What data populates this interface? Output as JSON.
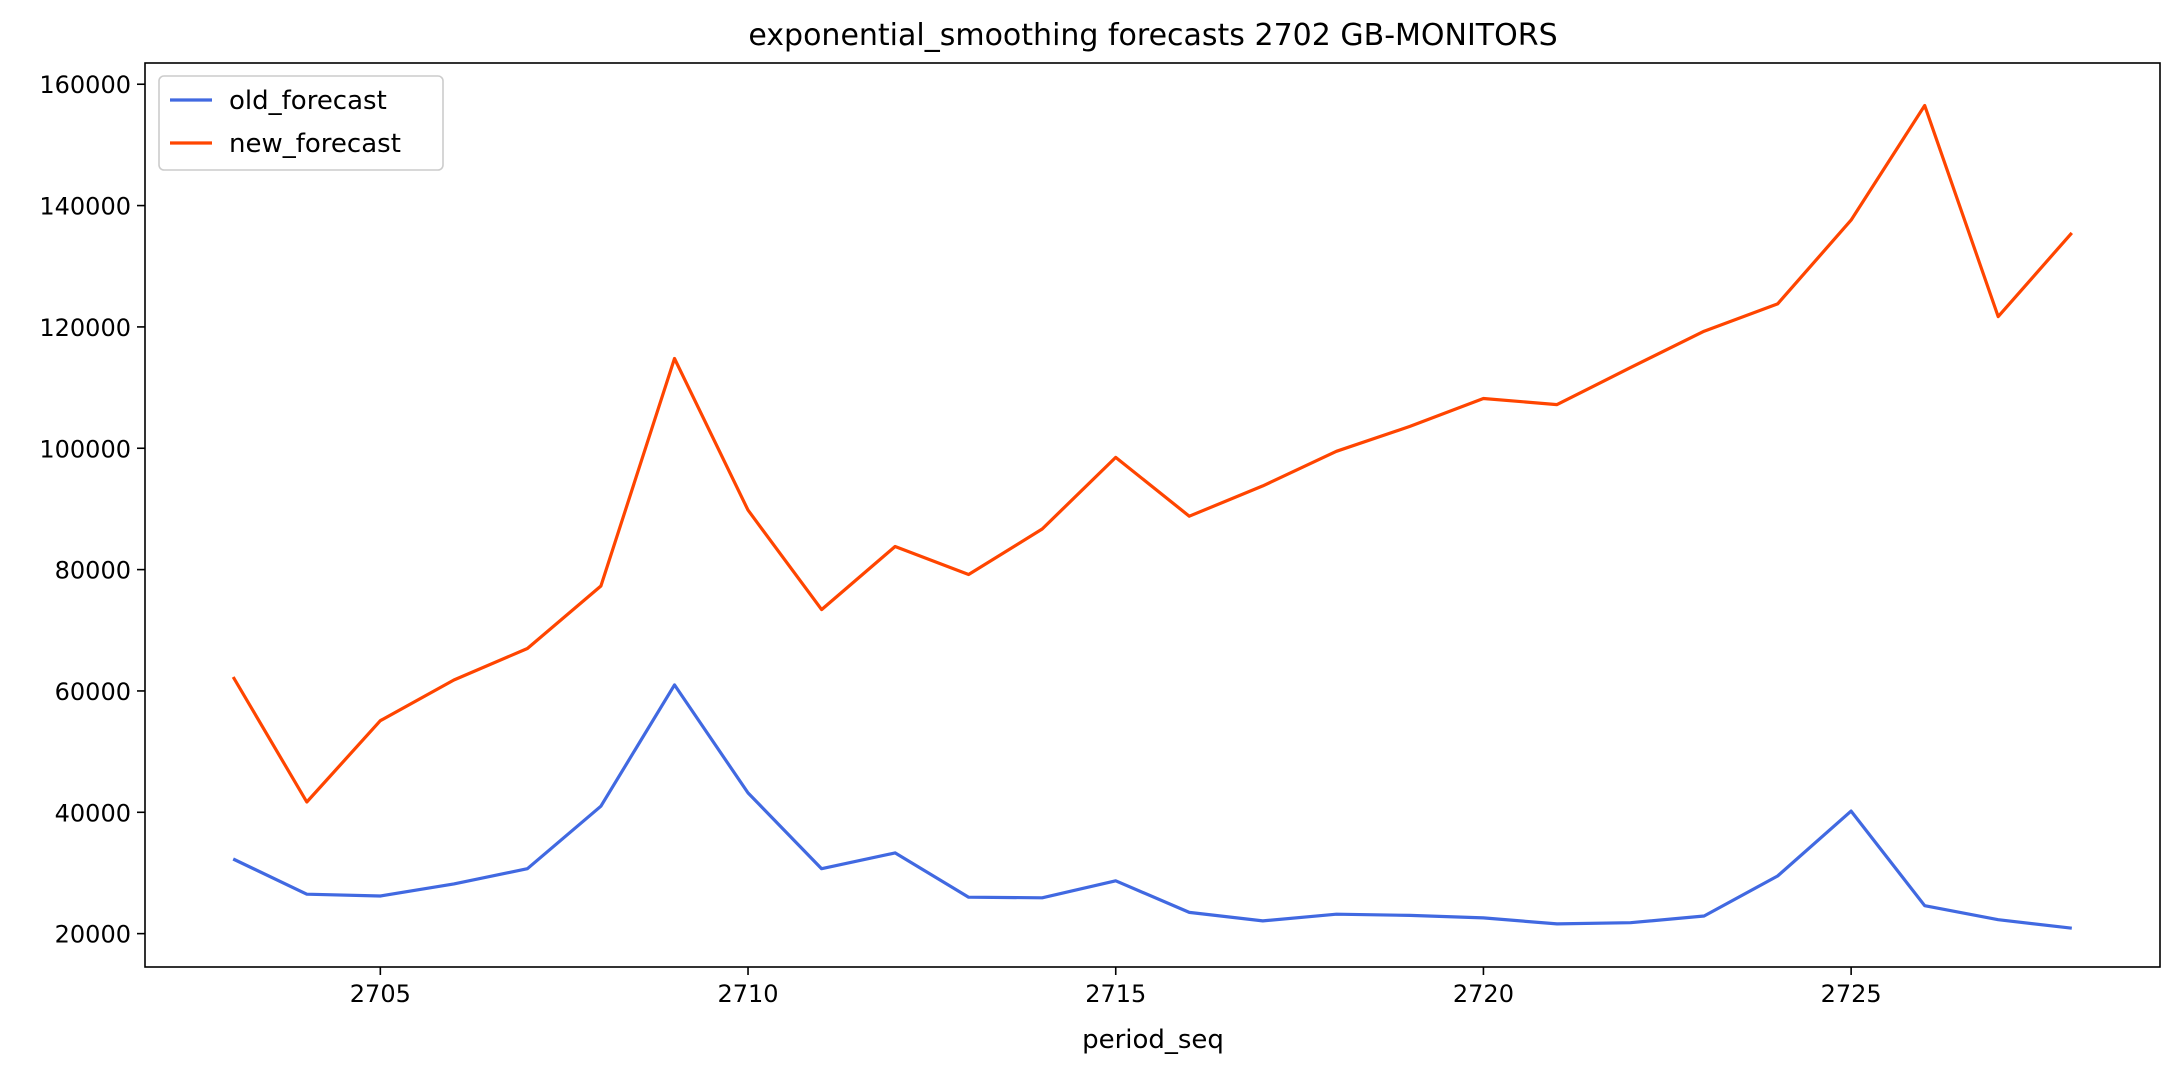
{
  "chart_data": {
    "type": "line",
    "title": "exponential_smoothing forecasts 2702 GB-MONITORS",
    "xlabel": "period_seq",
    "ylabel": "",
    "x": [
      2703,
      2704,
      2705,
      2706,
      2707,
      2708,
      2709,
      2710,
      2711,
      2712,
      2713,
      2714,
      2715,
      2716,
      2717,
      2718,
      2719,
      2720,
      2721,
      2722,
      2723,
      2724,
      2725,
      2726,
      2727,
      2728
    ],
    "xlim": [
      2701.8,
      2729.2
    ],
    "ylim": [
      14500,
      163500
    ],
    "xticks": [
      2705,
      2710,
      2715,
      2720,
      2725
    ],
    "yticks": [
      20000,
      40000,
      60000,
      80000,
      100000,
      120000,
      140000,
      160000
    ],
    "grid": false,
    "legend_position": "top-left",
    "series": [
      {
        "name": "old_forecast",
        "color": "#4169E1",
        "values": [
          32300,
          26500,
          26200,
          28200,
          30700,
          41000,
          61000,
          43200,
          30700,
          33300,
          26000,
          25900,
          28700,
          23500,
          22100,
          23200,
          23000,
          22600,
          21600,
          21800,
          22900,
          29500,
          40200,
          24600,
          22300,
          20900
        ]
      },
      {
        "name": "new_forecast",
        "color": "#FF4500",
        "values": [
          62300,
          41700,
          55100,
          61800,
          67000,
          77300,
          114800,
          89800,
          73400,
          83800,
          79200,
          86700,
          98500,
          88800,
          93800,
          99500,
          103600,
          108200,
          107200,
          113300,
          119300,
          123800,
          137600,
          156500,
          121700,
          135500
        ]
      }
    ]
  }
}
